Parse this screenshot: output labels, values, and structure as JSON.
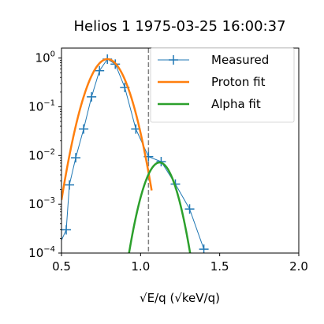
{
  "chart_data": {
    "type": "line",
    "title": "Helios 1 1975-03-25 16:00:37",
    "xlabel_main": "E/q",
    "xlabel_unit_open": "(",
    "xlabel_unit": "keV/q",
    "xlabel_unit_close": ")",
    "xlim": [
      0.5,
      2.0
    ],
    "ylim": [
      0.0001,
      1.6
    ],
    "yscale": "log",
    "xticks": [
      "0.5",
      "1.0",
      "1.5",
      "2.0"
    ],
    "xtick_values": [
      0.5,
      1.0,
      1.5,
      2.0
    ],
    "yticks": [
      {
        "base": "10",
        "exp": "−4",
        "value": 0.0001
      },
      {
        "base": "10",
        "exp": "−3",
        "value": 0.001
      },
      {
        "base": "10",
        "exp": "−2",
        "value": 0.01
      },
      {
        "base": "10",
        "exp": "−1",
        "value": 0.1
      },
      {
        "base": "10",
        "exp": "0",
        "value": 1
      }
    ],
    "vline_x": 1.05,
    "legend_position": "upper-right",
    "series": [
      {
        "name": "Measured",
        "color": "#1f77b4",
        "marker": "+",
        "x": [
          0.45,
          0.53,
          0.55,
          0.59,
          0.64,
          0.69,
          0.74,
          0.79,
          0.84,
          0.9,
          0.97,
          1.05,
          1.13,
          1.22,
          1.31,
          1.4
        ],
        "y": [
          8e-05,
          0.0003,
          0.0025,
          0.009,
          0.035,
          0.16,
          0.55,
          0.95,
          0.75,
          0.25,
          0.035,
          0.0095,
          0.0075,
          0.0026,
          0.0008,
          0.00012
        ]
      },
      {
        "name": "Proton fit",
        "color": "#ff7f0e",
        "model": {
          "amplitude": 0.95,
          "center": 0.79,
          "sigma": 0.0795
        },
        "x_range": [
          0.5,
          1.07
        ]
      },
      {
        "name": "Alpha fit",
        "color": "#2ca02c",
        "model": {
          "amplitude": 0.0072,
          "center": 1.12,
          "sigma": 0.066
        },
        "x_range": [
          0.9,
          1.32
        ]
      }
    ]
  }
}
